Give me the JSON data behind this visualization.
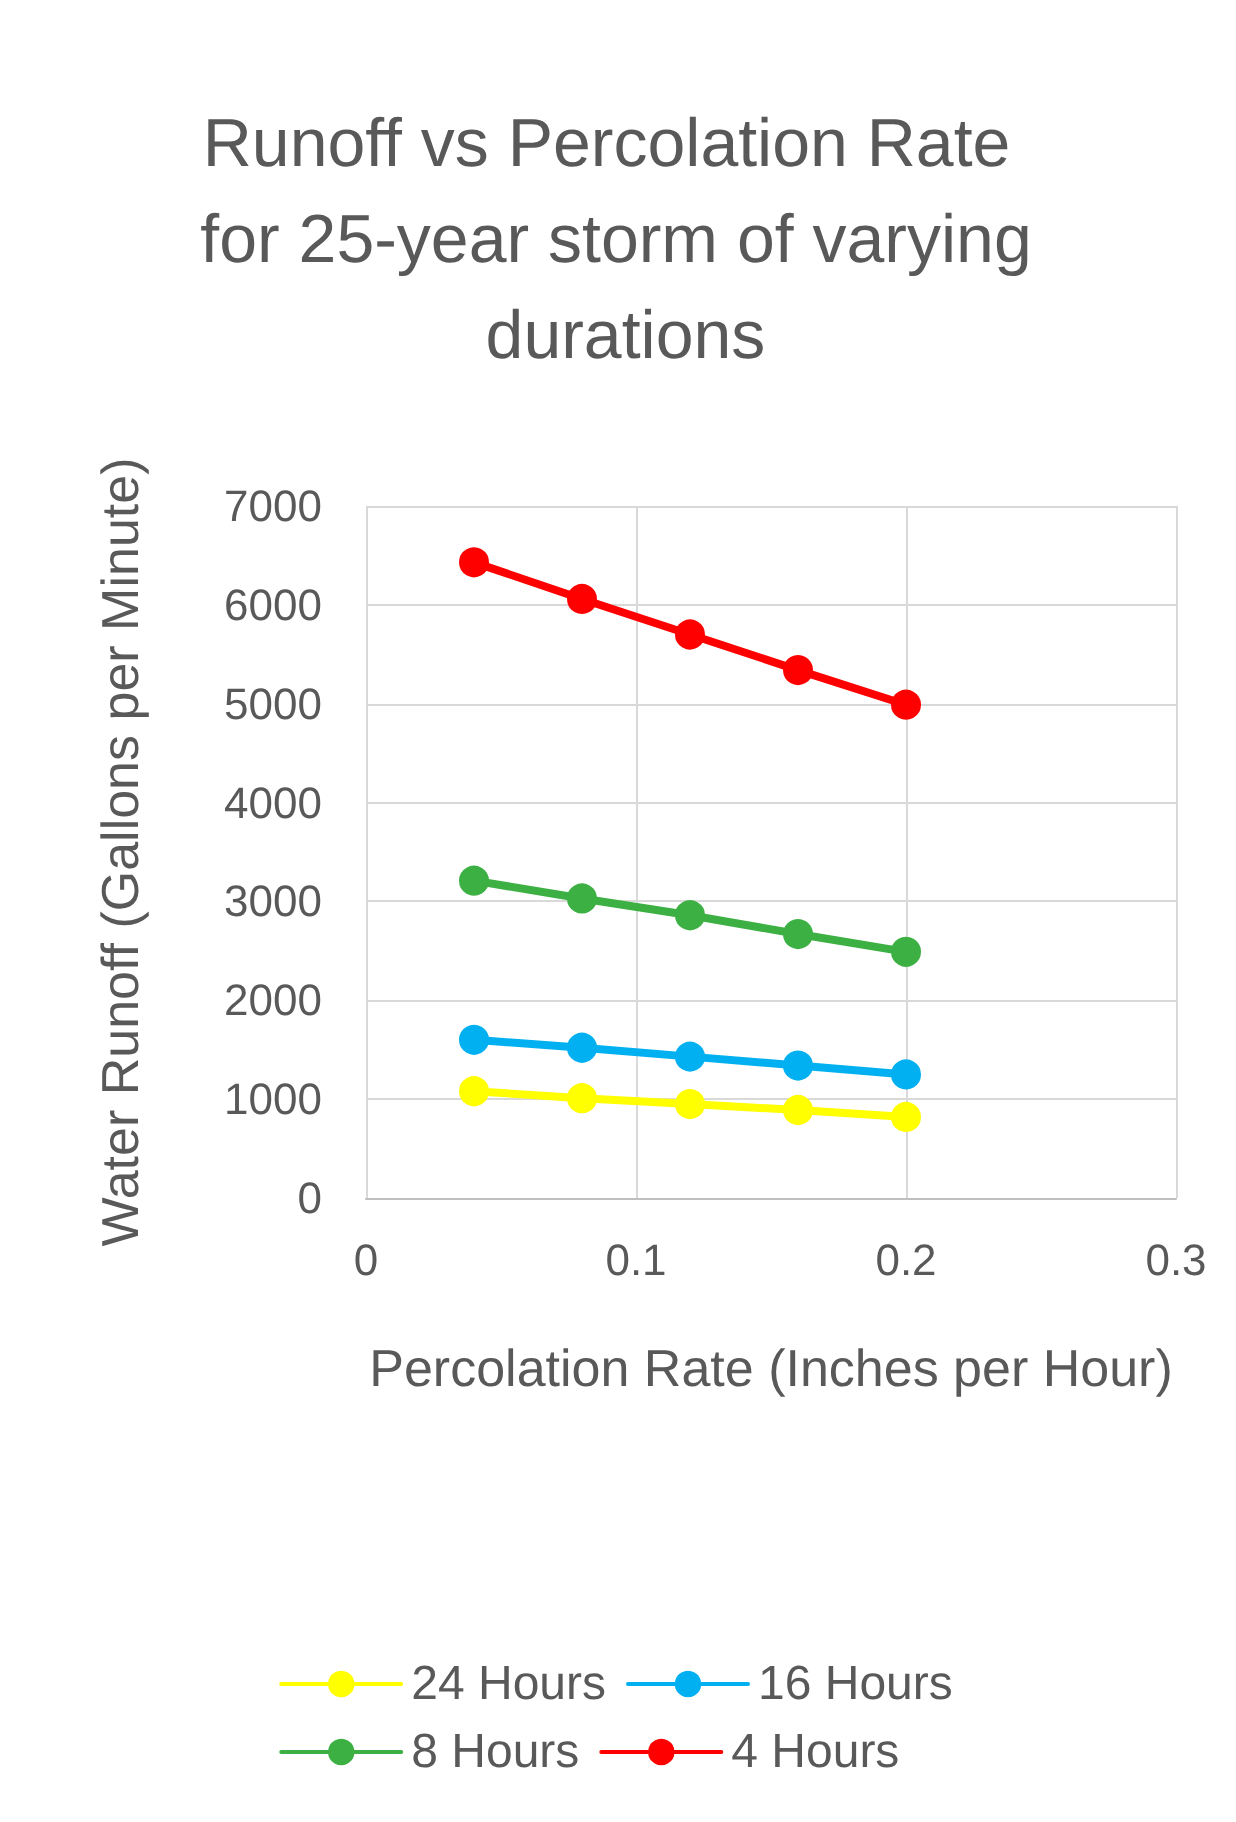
{
  "chart_data": {
    "type": "line",
    "title": "Runoff vs Percolation Rate for 25-year storm of varying durations",
    "xlabel": "Percolation Rate (Inches per Hour)",
    "ylabel": "Water Runoff (Gallons per Minute)",
    "xlim": [
      0,
      0.3
    ],
    "xticks": [
      0,
      0.1,
      0.2,
      0.3
    ],
    "ylim": [
      0,
      7000
    ],
    "yticks": [
      0,
      1000,
      2000,
      3000,
      4000,
      5000,
      6000,
      7000
    ],
    "grid": true,
    "legend": "bottom",
    "marker": "circle",
    "line_style": "solid",
    "x": [
      0.04,
      0.08,
      0.12,
      0.16,
      0.2
    ],
    "series": [
      {
        "name": "24 Hours",
        "color": "#ffff00",
        "values": [
          1080,
          1010,
          950,
          890,
          820
        ]
      },
      {
        "name": "16 Hours",
        "color": "#00b0f0",
        "values": [
          1600,
          1520,
          1430,
          1340,
          1250
        ]
      },
      {
        "name": "8 Hours",
        "color": "#3cb043",
        "values": [
          3210,
          3030,
          2860,
          2670,
          2490
        ]
      },
      {
        "name": "4 Hours",
        "color": "#ff0000",
        "values": [
          6430,
          6060,
          5700,
          5340,
          4990
        ]
      }
    ]
  }
}
